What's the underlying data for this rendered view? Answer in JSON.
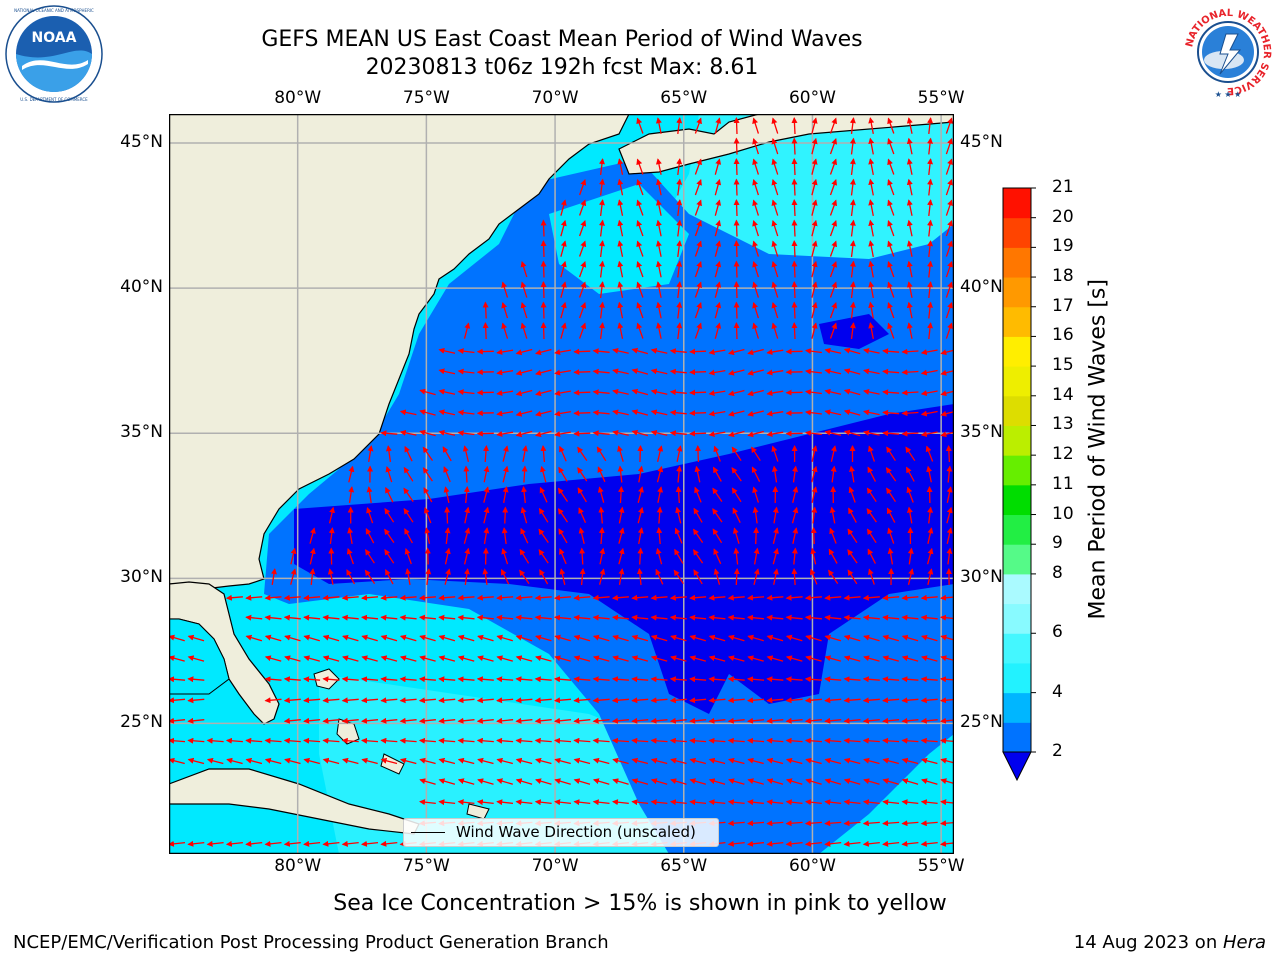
{
  "title": {
    "line1": "GEFS MEAN US East Coast Mean Period of Wind Waves",
    "line2": "20230813 t06z 192h fcst   Max: 8.61"
  },
  "logos": {
    "left": {
      "name": "NOAA",
      "label": "NOAA",
      "ring_text": "NATIONAL OCEANIC AND ATMOSPHERIC ADMINISTRATION · U.S. DEPARTMENT OF COMMERCE"
    },
    "right": {
      "name": "National Weather Service",
      "ring_text": "NATIONAL WEATHER SERVICE"
    }
  },
  "map": {
    "lon_labels": [
      "80°W",
      "75°W",
      "70°W",
      "65°W",
      "60°W",
      "55°W"
    ],
    "lat_labels": [
      "45°N",
      "40°N",
      "35°N",
      "30°N",
      "25°N"
    ],
    "lon_range": [
      -85,
      -54.5
    ],
    "lat_range": [
      20.5,
      46
    ],
    "lon_ticks": [
      -80,
      -75,
      -70,
      -65,
      -60,
      -55
    ],
    "lat_ticks": [
      45,
      40,
      35,
      30,
      25
    ],
    "colors": {
      "land": "#efeedc",
      "ocean_2_4": "#0073ff",
      "ocean_4_6": "#00e9ff",
      "ocean_6_8": "#44f7ff",
      "ocean_lt_2": "#0000ee",
      "gridline": "#b0b0b0",
      "arrow": "#ff0000",
      "coast": "#000000"
    },
    "legend": "Wind Wave Direction (unscaled)"
  },
  "colorbar": {
    "title": "Mean Period of Wind Waves [s]",
    "levels": [
      2,
      3,
      4,
      5,
      6,
      7,
      8,
      9,
      10,
      11,
      12,
      13,
      14,
      15,
      16,
      17,
      18,
      19,
      20,
      21
    ],
    "tick_labels": [
      "2",
      "4",
      "6",
      "8",
      "9",
      "10",
      "11",
      "12",
      "13",
      "14",
      "15",
      "16",
      "17",
      "18",
      "19",
      "20",
      "21"
    ],
    "colors": [
      "#0073ff",
      "#00b6ff",
      "#00e9ff",
      "#22f2ff",
      "#44f7ff",
      "#88faff",
      "#aafaff",
      "#55fa88",
      "#22ee44",
      "#00dd00",
      "#66ee00",
      "#bbee00",
      "#dddd00",
      "#eeee00",
      "#ffee00",
      "#ffbb00",
      "#ff9900",
      "#ff7700",
      "#ff4400",
      "#ff1100",
      "#ff0000"
    ],
    "under_color": "#0000ee"
  },
  "subtitle": "Sea Ice Concentration > 15% is shown in pink to yellow",
  "footer": {
    "left": "NCEP/EMC/Verification Post Processing Product Generation Branch",
    "date": "14 Aug 2023 on ",
    "machine": "Hera"
  }
}
